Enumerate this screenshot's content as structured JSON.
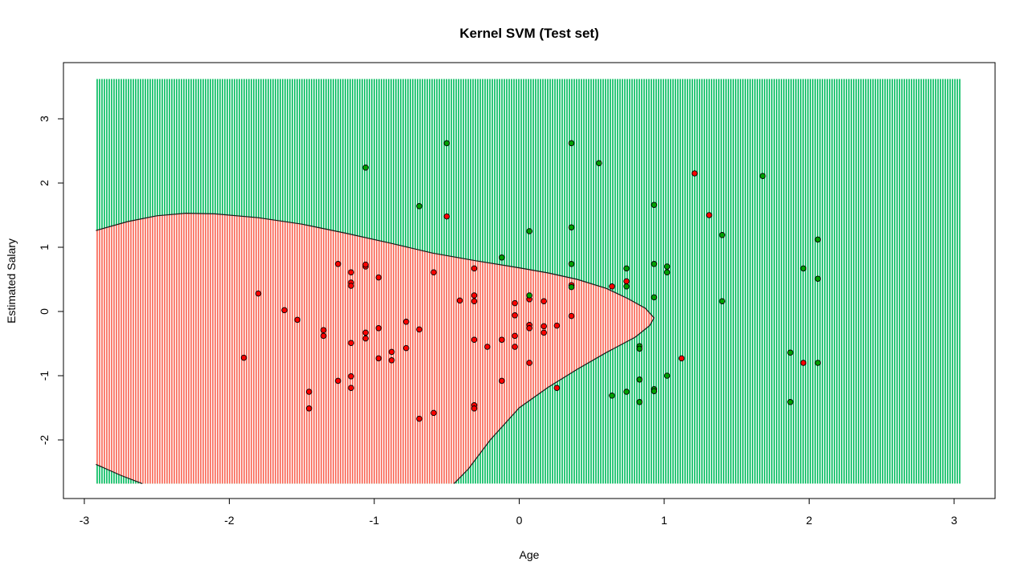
{
  "chart_data": {
    "type": "scatter",
    "title": "Kernel SVM (Test set)",
    "xlabel": "Age",
    "ylabel": "Estimated Salary",
    "xlim": [
      -3,
      3
    ],
    "ylim": [
      -2.7,
      3.7
    ],
    "grid": false,
    "x_ticks": [
      "-3",
      "-2",
      "-1",
      "0",
      "1",
      "2",
      "3"
    ],
    "y_ticks": [
      "-2",
      "-1",
      "0",
      "1",
      "2",
      "3"
    ],
    "background_region": {
      "x_range": [
        -2.92,
        3.05
      ],
      "y_range": [
        -2.68,
        3.62
      ],
      "class_0_color": "#FA8072",
      "class_1_color": "#2EC77A",
      "class_0_boundary": [
        [
          -2.92,
          1.26
        ],
        [
          -2.7,
          1.4
        ],
        [
          -2.5,
          1.49
        ],
        [
          -2.3,
          1.53
        ],
        [
          -2.1,
          1.52
        ],
        [
          -1.8,
          1.46
        ],
        [
          -1.5,
          1.36
        ],
        [
          -1.2,
          1.22
        ],
        [
          -0.9,
          1.07
        ],
        [
          -0.6,
          0.91
        ],
        [
          -0.3,
          0.79
        ],
        [
          0.0,
          0.68
        ],
        [
          0.2,
          0.6
        ],
        [
          0.4,
          0.5
        ],
        [
          0.6,
          0.36
        ],
        [
          0.75,
          0.2
        ],
        [
          0.87,
          0.05
        ],
        [
          0.93,
          -0.1
        ],
        [
          0.9,
          -0.22
        ],
        [
          0.8,
          -0.4
        ],
        [
          0.6,
          -0.64
        ],
        [
          0.4,
          -0.9
        ],
        [
          0.2,
          -1.18
        ],
        [
          0.0,
          -1.5
        ],
        [
          -0.2,
          -2.0
        ],
        [
          -0.35,
          -2.45
        ],
        [
          -0.45,
          -2.68
        ],
        [
          -2.92,
          -2.68
        ]
      ],
      "class_1_corner": [
        [
          -2.92,
          -2.68
        ],
        [
          -2.92,
          -2.38
        ],
        [
          -2.75,
          -2.55
        ],
        [
          -2.6,
          -2.68
        ]
      ]
    },
    "series": [
      {
        "class": "0",
        "color": "#FF0000",
        "points": [
          [
            -1.9,
            -0.72
          ],
          [
            -1.8,
            0.28
          ],
          [
            -1.62,
            0.02
          ],
          [
            -1.53,
            -0.13
          ],
          [
            -1.45,
            -1.25
          ],
          [
            -1.45,
            -1.51
          ],
          [
            -1.35,
            -0.29
          ],
          [
            -1.35,
            -0.38
          ],
          [
            -1.25,
            0.74
          ],
          [
            -1.25,
            -1.08
          ],
          [
            -1.16,
            0.61
          ],
          [
            -1.16,
            0.45
          ],
          [
            -1.16,
            0.4
          ],
          [
            -1.16,
            -0.49
          ],
          [
            -1.16,
            -1.01
          ],
          [
            -1.16,
            -1.19
          ],
          [
            -1.06,
            0.7
          ],
          [
            -1.06,
            0.73
          ],
          [
            -1.06,
            -0.33
          ],
          [
            -1.06,
            -0.42
          ],
          [
            -0.97,
            0.53
          ],
          [
            -0.97,
            -0.26
          ],
          [
            -0.97,
            -0.73
          ],
          [
            -0.88,
            -0.63
          ],
          [
            -0.88,
            -0.76
          ],
          [
            -0.78,
            -0.16
          ],
          [
            -0.78,
            -0.57
          ],
          [
            -0.69,
            -0.28
          ],
          [
            -0.69,
            -1.67
          ],
          [
            -0.59,
            0.61
          ],
          [
            -0.59,
            -1.58
          ],
          [
            -0.5,
            1.48
          ],
          [
            -0.41,
            0.17
          ],
          [
            -0.31,
            0.67
          ],
          [
            -0.31,
            0.25
          ],
          [
            -0.31,
            0.16
          ],
          [
            -0.31,
            -0.44
          ],
          [
            -0.31,
            -1.46
          ],
          [
            -0.31,
            -1.51
          ],
          [
            -0.22,
            -0.55
          ],
          [
            -0.12,
            -0.44
          ],
          [
            -0.12,
            -1.08
          ],
          [
            -0.03,
            0.13
          ],
          [
            -0.03,
            -0.06
          ],
          [
            -0.03,
            -0.38
          ],
          [
            -0.03,
            -0.55
          ],
          [
            0.07,
            0.19
          ],
          [
            0.07,
            -0.21
          ],
          [
            0.07,
            -0.26
          ],
          [
            0.07,
            -0.8
          ],
          [
            0.17,
            0.16
          ],
          [
            0.17,
            -0.23
          ],
          [
            0.17,
            -0.33
          ],
          [
            0.26,
            -0.22
          ],
          [
            0.26,
            -1.19
          ],
          [
            0.36,
            0.41
          ],
          [
            0.36,
            -0.07
          ],
          [
            0.64,
            0.39
          ],
          [
            0.74,
            0.47
          ],
          [
            1.12,
            -0.73
          ],
          [
            1.21,
            2.15
          ],
          [
            1.31,
            1.5
          ],
          [
            1.96,
            -0.8
          ]
        ]
      },
      {
        "class": "1",
        "color": "#00A000",
        "points": [
          [
            -1.06,
            2.24
          ],
          [
            -0.69,
            1.64
          ],
          [
            -0.5,
            2.62
          ],
          [
            -0.12,
            0.84
          ],
          [
            0.07,
            1.25
          ],
          [
            0.07,
            0.25
          ],
          [
            0.36,
            2.62
          ],
          [
            0.36,
            1.31
          ],
          [
            0.36,
            0.74
          ],
          [
            0.36,
            0.38
          ],
          [
            0.55,
            2.31
          ],
          [
            0.64,
            -1.31
          ],
          [
            0.74,
            0.67
          ],
          [
            0.74,
            0.39
          ],
          [
            0.74,
            -1.25
          ],
          [
            0.83,
            -0.54
          ],
          [
            0.83,
            -0.58
          ],
          [
            0.83,
            -1.06
          ],
          [
            0.83,
            -1.41
          ],
          [
            0.93,
            1.66
          ],
          [
            0.93,
            0.74
          ],
          [
            0.93,
            0.22
          ],
          [
            0.93,
            -1.21
          ],
          [
            0.93,
            -1.24
          ],
          [
            1.02,
            0.7
          ],
          [
            1.02,
            0.61
          ],
          [
            1.02,
            -1.0
          ],
          [
            1.4,
            1.19
          ],
          [
            1.4,
            0.16
          ],
          [
            1.68,
            2.11
          ],
          [
            1.87,
            -0.64
          ],
          [
            1.87,
            -1.41
          ],
          [
            1.96,
            0.67
          ],
          [
            2.06,
            1.12
          ],
          [
            2.06,
            0.51
          ],
          [
            2.06,
            -0.8
          ]
        ]
      }
    ]
  }
}
